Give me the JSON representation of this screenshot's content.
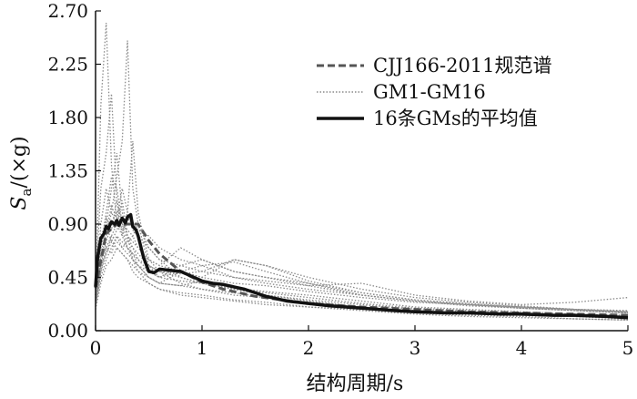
{
  "chart_data": {
    "type": "line",
    "xlabel": "结构周期/s",
    "ylabel": {
      "main": "S",
      "sub": "a",
      "unit": "/(×g)"
    },
    "xlim": [
      0,
      5
    ],
    "ylim": [
      0,
      2.7
    ],
    "x_ticks": [
      0,
      1,
      2,
      3,
      4,
      5
    ],
    "y_ticks": [
      0.0,
      0.45,
      0.9,
      1.35,
      1.8,
      2.25,
      2.7
    ],
    "x_tick_labels": [
      "0",
      "1",
      "2",
      "3",
      "4",
      "5"
    ],
    "y_tick_labels": [
      "0.00",
      "0.45",
      "0.90",
      "1.35",
      "1.80",
      "2.25",
      "2.70"
    ],
    "grid": false,
    "legend_position": "top-right",
    "legend": [
      "CJJ166-2011规范谱",
      "GM1-GM16",
      "16条GMs的平均值"
    ],
    "colors": {
      "code": "#555555",
      "gm": "#8a8a8a",
      "mean": "#111111"
    },
    "series": [
      {
        "name": "CJJ166-2011规范谱",
        "style": "dashed",
        "x": [
          0,
          0.1,
          0.2,
          0.3,
          0.4,
          0.5,
          0.6,
          0.8,
          1.0,
          1.2,
          1.5,
          2.0,
          2.5,
          3.0,
          3.5,
          4.0,
          4.5,
          5.0
        ],
        "y": [
          0.36,
          0.82,
          0.9,
          0.9,
          0.9,
          0.76,
          0.65,
          0.5,
          0.41,
          0.35,
          0.29,
          0.23,
          0.2,
          0.18,
          0.16,
          0.15,
          0.14,
          0.13
        ]
      },
      {
        "name": "16条GMs的平均值",
        "style": "solid",
        "x": [
          0,
          0.02,
          0.05,
          0.08,
          0.1,
          0.12,
          0.15,
          0.18,
          0.2,
          0.22,
          0.25,
          0.28,
          0.3,
          0.33,
          0.35,
          0.38,
          0.4,
          0.45,
          0.5,
          0.55,
          0.6,
          0.7,
          0.8,
          0.9,
          1.0,
          1.1,
          1.2,
          1.3,
          1.4,
          1.5,
          1.6,
          1.8,
          2.0,
          2.2,
          2.5,
          2.8,
          3.0,
          3.3,
          3.5,
          3.8,
          4.0,
          4.3,
          4.5,
          4.8,
          5.0
        ],
        "y": [
          0.37,
          0.62,
          0.78,
          0.82,
          0.88,
          0.86,
          0.92,
          0.9,
          0.93,
          0.89,
          0.95,
          0.91,
          0.96,
          0.98,
          0.88,
          0.85,
          0.8,
          0.62,
          0.5,
          0.49,
          0.52,
          0.51,
          0.5,
          0.46,
          0.42,
          0.4,
          0.39,
          0.37,
          0.35,
          0.32,
          0.29,
          0.25,
          0.23,
          0.21,
          0.19,
          0.17,
          0.16,
          0.15,
          0.15,
          0.14,
          0.14,
          0.13,
          0.13,
          0.12,
          0.11
        ]
      },
      {
        "name": "GM1-GM16",
        "style": "dotted",
        "members": [
          {
            "x": [
              0,
              0.05,
              0.1,
              0.15,
              0.2,
              0.25,
              0.3,
              0.35,
              0.4,
              0.5,
              0.6,
              0.8,
              1.0,
              1.3,
              1.6,
              2.0,
              2.5,
              3.0,
              3.5,
              4.0,
              4.5,
              5.0
            ],
            "y": [
              0.25,
              1.9,
              2.6,
              1.4,
              0.9,
              1.1,
              0.8,
              0.6,
              0.55,
              0.45,
              0.4,
              0.38,
              0.35,
              0.3,
              0.28,
              0.22,
              0.18,
              0.15,
              0.13,
              0.12,
              0.1,
              0.09
            ]
          },
          {
            "x": [
              0,
              0.05,
              0.1,
              0.15,
              0.2,
              0.25,
              0.3,
              0.35,
              0.4,
              0.5,
              0.6,
              0.8,
              1.0,
              1.3,
              1.6,
              2.0,
              2.5,
              3.0,
              3.5,
              4.0,
              4.5,
              5.0
            ],
            "y": [
              0.3,
              0.9,
              1.2,
              1.0,
              1.3,
              1.6,
              2.45,
              1.2,
              0.9,
              0.55,
              0.45,
              0.42,
              0.4,
              0.36,
              0.3,
              0.26,
              0.22,
              0.18,
              0.16,
              0.14,
              0.12,
              0.11
            ]
          },
          {
            "x": [
              0,
              0.05,
              0.1,
              0.15,
              0.2,
              0.25,
              0.3,
              0.35,
              0.4,
              0.5,
              0.6,
              0.8,
              1.0,
              1.3,
              1.6,
              2.0,
              2.5,
              3.0,
              3.5,
              4.0,
              4.5,
              5.0
            ],
            "y": [
              0.4,
              1.2,
              1.5,
              2.0,
              1.1,
              0.8,
              1.0,
              1.6,
              1.0,
              0.6,
              0.5,
              0.45,
              0.4,
              0.35,
              0.3,
              0.25,
              0.2,
              0.16,
              0.14,
              0.13,
              0.12,
              0.1
            ]
          },
          {
            "x": [
              0,
              0.05,
              0.1,
              0.15,
              0.2,
              0.25,
              0.3,
              0.35,
              0.4,
              0.5,
              0.6,
              0.8,
              1.0,
              1.3,
              1.6,
              2.0,
              2.5,
              3.0,
              3.5,
              4.0,
              4.5,
              5.0
            ],
            "y": [
              0.35,
              0.7,
              0.9,
              1.2,
              1.5,
              1.0,
              0.8,
              0.75,
              0.7,
              0.6,
              0.55,
              0.5,
              0.45,
              0.4,
              0.38,
              0.33,
              0.28,
              0.24,
              0.22,
              0.2,
              0.18,
              0.16
            ]
          },
          {
            "x": [
              0,
              0.05,
              0.1,
              0.15,
              0.2,
              0.25,
              0.3,
              0.35,
              0.4,
              0.5,
              0.6,
              0.8,
              1.0,
              1.3,
              1.6,
              2.0,
              2.5,
              3.0,
              3.5,
              4.0,
              4.5,
              5.0
            ],
            "y": [
              0.2,
              0.5,
              0.7,
              0.8,
              0.9,
              0.85,
              0.95,
              0.9,
              0.85,
              0.8,
              0.7,
              0.6,
              0.55,
              0.58,
              0.5,
              0.4,
              0.32,
              0.26,
              0.22,
              0.19,
              0.17,
              0.15
            ]
          },
          {
            "x": [
              0,
              0.05,
              0.1,
              0.15,
              0.2,
              0.25,
              0.3,
              0.35,
              0.4,
              0.5,
              0.6,
              0.8,
              1.0,
              1.3,
              1.6,
              2.0,
              2.5,
              3.0,
              3.5,
              4.0,
              4.5,
              5.0
            ],
            "y": [
              0.3,
              0.6,
              0.8,
              1.0,
              0.9,
              0.8,
              0.7,
              0.6,
              0.5,
              0.45,
              0.4,
              0.5,
              0.45,
              0.6,
              0.55,
              0.45,
              0.35,
              0.28,
              0.24,
              0.21,
              0.18,
              0.16
            ]
          },
          {
            "x": [
              0,
              0.05,
              0.1,
              0.15,
              0.2,
              0.25,
              0.3,
              0.35,
              0.4,
              0.5,
              0.6,
              0.8,
              1.0,
              1.3,
              1.6,
              2.0,
              2.5,
              3.0,
              3.5,
              4.0,
              4.5,
              5.0
            ],
            "y": [
              0.25,
              0.55,
              0.65,
              0.75,
              0.7,
              0.65,
              0.6,
              0.55,
              0.5,
              0.4,
              0.35,
              0.3,
              0.28,
              0.25,
              0.22,
              0.2,
              0.18,
              0.16,
              0.15,
              0.13,
              0.12,
              0.1
            ]
          },
          {
            "x": [
              0,
              0.05,
              0.1,
              0.15,
              0.2,
              0.25,
              0.3,
              0.35,
              0.4,
              0.5,
              0.6,
              0.8,
              1.0,
              1.3,
              1.6,
              2.0,
              2.5,
              3.0,
              3.5,
              4.0,
              4.5,
              5.0
            ],
            "y": [
              0.3,
              0.75,
              0.95,
              0.85,
              1.1,
              0.9,
              0.75,
              0.7,
              0.65,
              0.55,
              0.5,
              0.4,
              0.35,
              0.32,
              0.28,
              0.24,
              0.2,
              0.17,
              0.15,
              0.13,
              0.12,
              0.11
            ]
          },
          {
            "x": [
              0,
              0.05,
              0.1,
              0.15,
              0.2,
              0.25,
              0.3,
              0.35,
              0.4,
              0.5,
              0.6,
              0.8,
              1.0,
              1.3,
              1.6,
              2.0,
              2.5,
              3.0,
              3.5,
              4.0,
              4.5,
              5.0
            ],
            "y": [
              0.22,
              0.45,
              0.6,
              0.7,
              0.8,
              0.7,
              0.65,
              0.6,
              0.55,
              0.5,
              0.45,
              0.55,
              0.6,
              0.5,
              0.45,
              0.4,
              0.3,
              0.25,
              0.22,
              0.2,
              0.18,
              0.17
            ]
          },
          {
            "x": [
              0,
              0.05,
              0.1,
              0.15,
              0.2,
              0.25,
              0.3,
              0.35,
              0.4,
              0.5,
              0.6,
              0.8,
              1.0,
              1.3,
              1.6,
              2.0,
              2.5,
              3.0,
              3.5,
              4.0,
              4.5,
              5.0
            ],
            "y": [
              0.28,
              0.65,
              0.85,
              1.05,
              0.95,
              1.2,
              1.0,
              0.85,
              0.8,
              0.7,
              0.6,
              0.55,
              0.5,
              0.45,
              0.4,
              0.35,
              0.3,
              0.25,
              0.22,
              0.19,
              0.17,
              0.15
            ]
          },
          {
            "x": [
              0,
              0.05,
              0.1,
              0.15,
              0.2,
              0.25,
              0.3,
              0.35,
              0.4,
              0.5,
              0.6,
              0.8,
              1.0,
              1.3,
              1.6,
              2.0,
              2.5,
              3.0,
              3.5,
              4.0,
              4.5,
              5.0
            ],
            "y": [
              0.35,
              0.8,
              0.9,
              0.75,
              0.85,
              0.95,
              0.8,
              0.7,
              0.6,
              0.5,
              0.45,
              0.5,
              0.55,
              0.45,
              0.42,
              0.38,
              0.4,
              0.3,
              0.25,
              0.22,
              0.24,
              0.28
            ]
          },
          {
            "x": [
              0,
              0.05,
              0.1,
              0.15,
              0.2,
              0.25,
              0.3,
              0.35,
              0.4,
              0.5,
              0.6,
              0.8,
              1.0,
              1.3,
              1.6,
              2.0,
              2.5,
              3.0,
              3.5,
              4.0,
              4.5,
              5.0
            ],
            "y": [
              0.18,
              0.4,
              0.55,
              0.6,
              0.7,
              0.65,
              0.6,
              0.5,
              0.45,
              0.4,
              0.35,
              0.32,
              0.3,
              0.26,
              0.24,
              0.2,
              0.17,
              0.14,
              0.12,
              0.11,
              0.1,
              0.09
            ]
          },
          {
            "x": [
              0,
              0.05,
              0.1,
              0.15,
              0.2,
              0.25,
              0.3,
              0.35,
              0.4,
              0.5,
              0.6,
              0.8,
              1.0,
              1.3,
              1.6,
              2.0,
              2.5,
              3.0,
              3.5,
              4.0,
              4.5,
              5.0
            ],
            "y": [
              0.32,
              0.7,
              1.0,
              1.3,
              1.2,
              0.9,
              0.85,
              0.8,
              0.9,
              0.7,
              0.6,
              0.45,
              0.4,
              0.35,
              0.32,
              0.28,
              0.23,
              0.19,
              0.17,
              0.15,
              0.13,
              0.12
            ]
          },
          {
            "x": [
              0,
              0.05,
              0.1,
              0.15,
              0.2,
              0.25,
              0.3,
              0.35,
              0.4,
              0.5,
              0.6,
              0.8,
              1.0,
              1.3,
              1.6,
              2.0,
              2.5,
              3.0,
              3.5,
              4.0,
              4.5,
              5.0
            ],
            "y": [
              0.26,
              0.55,
              0.75,
              0.9,
              1.0,
              0.85,
              0.7,
              0.65,
              0.6,
              0.55,
              0.5,
              0.48,
              0.5,
              0.6,
              0.55,
              0.42,
              0.32,
              0.26,
              0.23,
              0.2,
              0.18,
              0.16
            ]
          },
          {
            "x": [
              0,
              0.05,
              0.1,
              0.15,
              0.2,
              0.25,
              0.3,
              0.35,
              0.4,
              0.5,
              0.6,
              0.8,
              1.0,
              1.3,
              1.6,
              2.0,
              2.5,
              3.0,
              3.5,
              4.0,
              4.5,
              5.0
            ],
            "y": [
              0.24,
              0.5,
              0.65,
              0.8,
              0.75,
              0.7,
              0.75,
              0.8,
              0.7,
              0.6,
              0.55,
              0.7,
              0.6,
              0.5,
              0.45,
              0.38,
              0.3,
              0.25,
              0.21,
              0.19,
              0.17,
              0.15
            ]
          },
          {
            "x": [
              0,
              0.05,
              0.1,
              0.15,
              0.2,
              0.25,
              0.3,
              0.35,
              0.4,
              0.5,
              0.6,
              0.8,
              1.0,
              1.3,
              1.6,
              2.0,
              2.5,
              3.0,
              3.5,
              4.0,
              4.5,
              5.0
            ],
            "y": [
              0.3,
              0.6,
              0.7,
              0.65,
              0.8,
              0.75,
              0.7,
              0.65,
              0.55,
              0.45,
              0.4,
              0.38,
              0.42,
              0.36,
              0.33,
              0.3,
              0.25,
              0.2,
              0.18,
              0.16,
              0.14,
              0.13
            ]
          }
        ]
      }
    ]
  }
}
